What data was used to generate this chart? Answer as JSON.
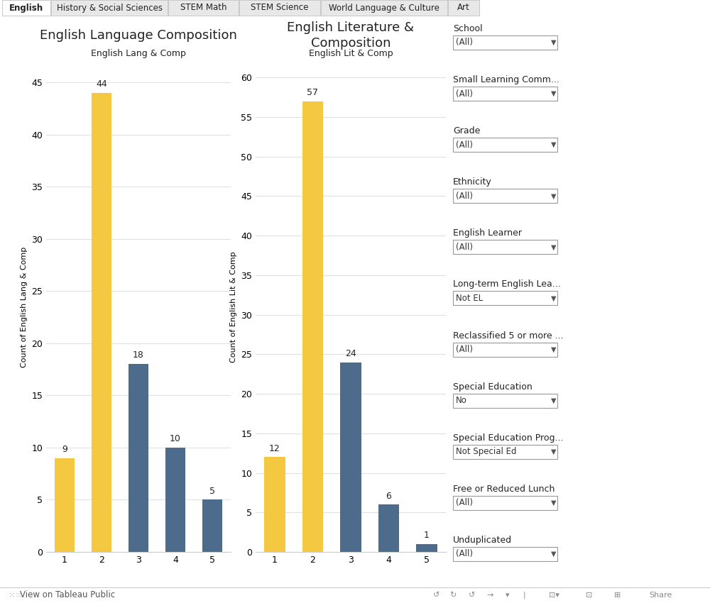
{
  "tab_labels": [
    "English",
    "History & Social Sciences",
    "STEM Math",
    "STEM Science",
    "World Language & Culture",
    "Art"
  ],
  "active_tab": 0,
  "chart1": {
    "title": "English Language Composition",
    "subtitle": "English Lang & Comp",
    "ylabel": "Count of English Lang & Comp",
    "xlabel_categories": [
      1,
      2,
      3,
      4,
      5
    ],
    "values": [
      9,
      44,
      18,
      10,
      5
    ],
    "colors": [
      "#F5C842",
      "#F5C842",
      "#4D6B8A",
      "#4D6B8A",
      "#4D6B8A"
    ],
    "ylim": [
      0,
      47
    ],
    "yticks": [
      0,
      5,
      10,
      15,
      20,
      25,
      30,
      35,
      40,
      45
    ]
  },
  "chart2": {
    "title": "English Literature &\nComposition",
    "subtitle": "English Lit & Comp",
    "ylabel": "Count of English Lit & Comp",
    "xlabel_categories": [
      1,
      2,
      3,
      4,
      5
    ],
    "values": [
      12,
      57,
      24,
      6,
      1
    ],
    "colors": [
      "#F5C842",
      "#F5C842",
      "#4D6B8A",
      "#4D6B8A",
      "#4D6B8A"
    ],
    "ylim": [
      0,
      62
    ],
    "yticks": [
      0,
      5,
      10,
      15,
      20,
      25,
      30,
      35,
      40,
      45,
      50,
      55,
      60
    ]
  },
  "filters": [
    {
      "label": "School",
      "value": "(All)"
    },
    {
      "label": "Small Learning Comm...",
      "value": "(All)"
    },
    {
      "label": "Grade",
      "value": "(All)"
    },
    {
      "label": "Ethnicity",
      "value": "(All)"
    },
    {
      "label": "English Learner",
      "value": "(All)"
    },
    {
      "label": "Long-term English Lea...",
      "value": "Not EL"
    },
    {
      "label": "Reclassified 5 or more ...",
      "value": "(All)"
    },
    {
      "label": "Special Education",
      "value": "No"
    },
    {
      "label": "Special Education Prog...",
      "value": "Not Special Ed"
    },
    {
      "label": "Free or Reduced Lunch",
      "value": "(All)"
    },
    {
      "label": "Unduplicated",
      "value": "(All)"
    }
  ],
  "bg_color": "#ffffff",
  "tab_bg": "#e8e8e8",
  "active_tab_color": "#ffffff",
  "bar_color_yellow": "#F5C842",
  "bar_color_blue": "#4D6B8A",
  "grid_color": "#e0e0e0",
  "bottom_bar_color": "#f5f5f5",
  "tab_border_color": "#c8c8c8"
}
